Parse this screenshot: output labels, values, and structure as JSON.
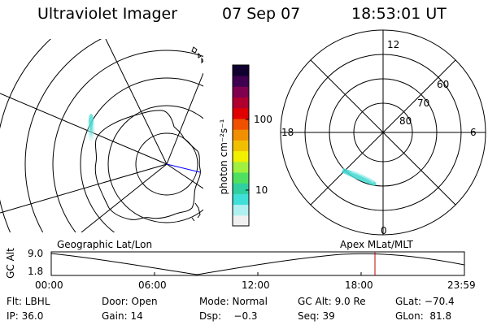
{
  "header": {
    "instrument": "Ultraviolet Imager",
    "date": "07 Sep 07",
    "time": "18:53:01 UT"
  },
  "colorbar": {
    "label": "photon cm⁻²s⁻¹",
    "ticks": [
      "100",
      "10"
    ],
    "scale": "log",
    "colors": [
      "#f0f0f0",
      "#b0f0f0",
      "#40e0d8",
      "#30d0a0",
      "#50e060",
      "#a0f040",
      "#f0f000",
      "#f0c000",
      "#f09000",
      "#f05000",
      "#e00000",
      "#b00030",
      "#800050",
      "#400050",
      "#100030"
    ]
  },
  "polar_plot": {
    "labels": {
      "top": "12",
      "left": "18",
      "right": "6",
      "bottom": "0"
    },
    "lat_labels": [
      "60",
      "70",
      "80"
    ]
  },
  "timeline": {
    "left_label": "Geographic Lat/Lon",
    "right_label": "Apex  MLat/MLT",
    "y_axis_label": "GC Alt",
    "y_ticks": [
      "9.0",
      "1.8"
    ],
    "x_ticks": [
      "00:00",
      "06:00",
      "12:00",
      "18:00",
      "23:59"
    ],
    "current_time_color": "#c00000"
  },
  "info": {
    "row1": [
      "Flt: LBHL",
      "Door: Open",
      "Mode: Normal",
      "GC Alt: 9.0 Re",
      "GLat: −70.4"
    ],
    "row2": [
      "IP: 36.0",
      "Gain: 14",
      "Dsp:    −0.3",
      "Seq: 39",
      "GLon:  81.8"
    ]
  }
}
